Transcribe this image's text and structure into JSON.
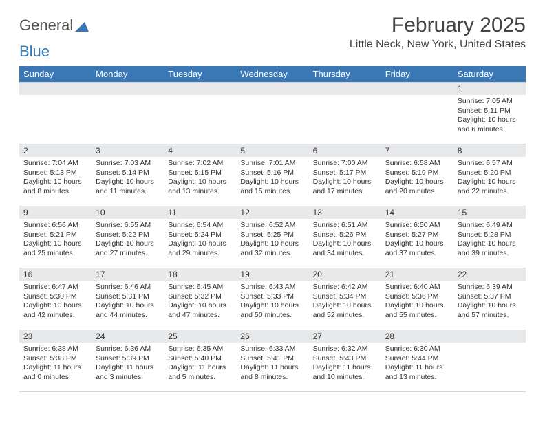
{
  "logo": {
    "part1": "General",
    "part2": "Blue"
  },
  "title": "February 2025",
  "location": "Little Neck, New York, United States",
  "colors": {
    "header_bg": "#3a78b5",
    "header_text": "#ffffff",
    "daynum_bg": "#e8e9eb",
    "border": "#d0d4d8",
    "text": "#333333",
    "title": "#444444"
  },
  "day_headers": [
    "Sunday",
    "Monday",
    "Tuesday",
    "Wednesday",
    "Thursday",
    "Friday",
    "Saturday"
  ],
  "weeks": [
    [
      {
        "empty": true
      },
      {
        "empty": true
      },
      {
        "empty": true
      },
      {
        "empty": true
      },
      {
        "empty": true
      },
      {
        "empty": true
      },
      {
        "num": "1",
        "sunrise": "7:05 AM",
        "sunset": "5:11 PM",
        "daylight": "10 hours and 6 minutes."
      }
    ],
    [
      {
        "num": "2",
        "sunrise": "7:04 AM",
        "sunset": "5:13 PM",
        "daylight": "10 hours and 8 minutes."
      },
      {
        "num": "3",
        "sunrise": "7:03 AM",
        "sunset": "5:14 PM",
        "daylight": "10 hours and 11 minutes."
      },
      {
        "num": "4",
        "sunrise": "7:02 AM",
        "sunset": "5:15 PM",
        "daylight": "10 hours and 13 minutes."
      },
      {
        "num": "5",
        "sunrise": "7:01 AM",
        "sunset": "5:16 PM",
        "daylight": "10 hours and 15 minutes."
      },
      {
        "num": "6",
        "sunrise": "7:00 AM",
        "sunset": "5:17 PM",
        "daylight": "10 hours and 17 minutes."
      },
      {
        "num": "7",
        "sunrise": "6:58 AM",
        "sunset": "5:19 PM",
        "daylight": "10 hours and 20 minutes."
      },
      {
        "num": "8",
        "sunrise": "6:57 AM",
        "sunset": "5:20 PM",
        "daylight": "10 hours and 22 minutes."
      }
    ],
    [
      {
        "num": "9",
        "sunrise": "6:56 AM",
        "sunset": "5:21 PM",
        "daylight": "10 hours and 25 minutes."
      },
      {
        "num": "10",
        "sunrise": "6:55 AM",
        "sunset": "5:22 PM",
        "daylight": "10 hours and 27 minutes."
      },
      {
        "num": "11",
        "sunrise": "6:54 AM",
        "sunset": "5:24 PM",
        "daylight": "10 hours and 29 minutes."
      },
      {
        "num": "12",
        "sunrise": "6:52 AM",
        "sunset": "5:25 PM",
        "daylight": "10 hours and 32 minutes."
      },
      {
        "num": "13",
        "sunrise": "6:51 AM",
        "sunset": "5:26 PM",
        "daylight": "10 hours and 34 minutes."
      },
      {
        "num": "14",
        "sunrise": "6:50 AM",
        "sunset": "5:27 PM",
        "daylight": "10 hours and 37 minutes."
      },
      {
        "num": "15",
        "sunrise": "6:49 AM",
        "sunset": "5:28 PM",
        "daylight": "10 hours and 39 minutes."
      }
    ],
    [
      {
        "num": "16",
        "sunrise": "6:47 AM",
        "sunset": "5:30 PM",
        "daylight": "10 hours and 42 minutes."
      },
      {
        "num": "17",
        "sunrise": "6:46 AM",
        "sunset": "5:31 PM",
        "daylight": "10 hours and 44 minutes."
      },
      {
        "num": "18",
        "sunrise": "6:45 AM",
        "sunset": "5:32 PM",
        "daylight": "10 hours and 47 minutes."
      },
      {
        "num": "19",
        "sunrise": "6:43 AM",
        "sunset": "5:33 PM",
        "daylight": "10 hours and 50 minutes."
      },
      {
        "num": "20",
        "sunrise": "6:42 AM",
        "sunset": "5:34 PM",
        "daylight": "10 hours and 52 minutes."
      },
      {
        "num": "21",
        "sunrise": "6:40 AM",
        "sunset": "5:36 PM",
        "daylight": "10 hours and 55 minutes."
      },
      {
        "num": "22",
        "sunrise": "6:39 AM",
        "sunset": "5:37 PM",
        "daylight": "10 hours and 57 minutes."
      }
    ],
    [
      {
        "num": "23",
        "sunrise": "6:38 AM",
        "sunset": "5:38 PM",
        "daylight": "11 hours and 0 minutes."
      },
      {
        "num": "24",
        "sunrise": "6:36 AM",
        "sunset": "5:39 PM",
        "daylight": "11 hours and 3 minutes."
      },
      {
        "num": "25",
        "sunrise": "6:35 AM",
        "sunset": "5:40 PM",
        "daylight": "11 hours and 5 minutes."
      },
      {
        "num": "26",
        "sunrise": "6:33 AM",
        "sunset": "5:41 PM",
        "daylight": "11 hours and 8 minutes."
      },
      {
        "num": "27",
        "sunrise": "6:32 AM",
        "sunset": "5:43 PM",
        "daylight": "11 hours and 10 minutes."
      },
      {
        "num": "28",
        "sunrise": "6:30 AM",
        "sunset": "5:44 PM",
        "daylight": "11 hours and 13 minutes."
      },
      {
        "empty": true
      }
    ]
  ],
  "labels": {
    "sunrise": "Sunrise:",
    "sunset": "Sunset:",
    "daylight": "Daylight:"
  }
}
